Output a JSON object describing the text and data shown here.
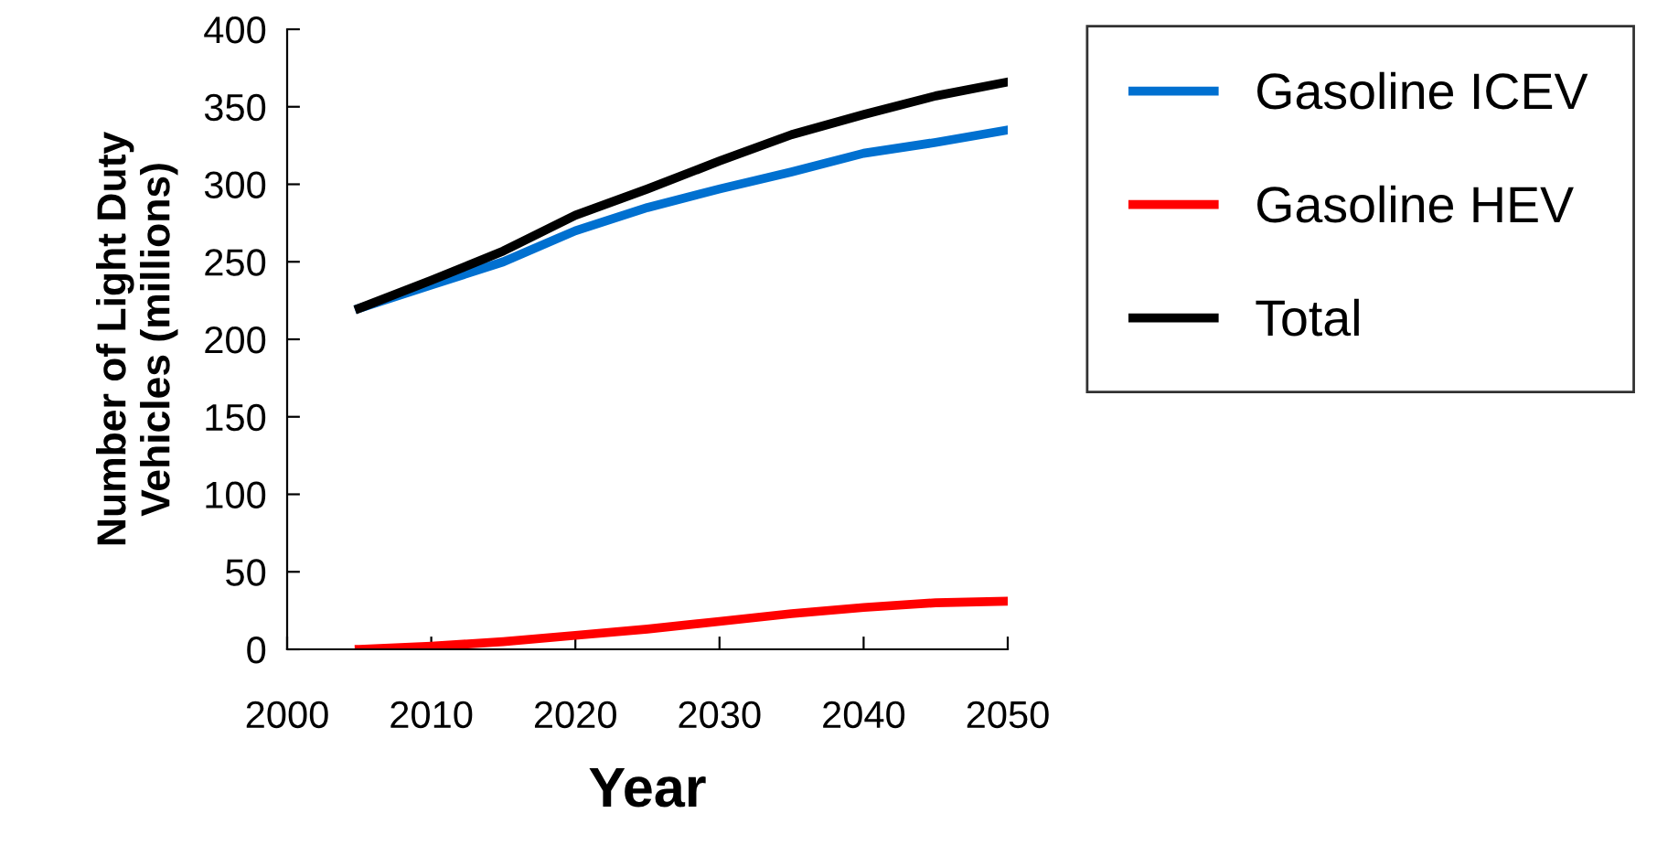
{
  "chart_data": {
    "type": "line",
    "xlabel": "Year",
    "ylabel": "Number of Light Duty\nVehicles (millions)",
    "x": [
      2005,
      2010,
      2015,
      2020,
      2025,
      2030,
      2035,
      2040,
      2045,
      2050
    ],
    "series": [
      {
        "name": "Gasoline ICEV",
        "color": "#0070d0",
        "values": [
          220,
          235,
          250,
          270,
          285,
          297,
          308,
          320,
          327,
          335
        ]
      },
      {
        "name": "Gasoline HEV",
        "color": "#ff0000",
        "values": [
          0,
          2,
          5,
          9,
          13,
          18,
          23,
          27,
          30,
          31
        ]
      },
      {
        "name": "Total",
        "color": "#000000",
        "values": [
          220,
          238,
          257,
          280,
          297,
          315,
          332,
          345,
          357,
          366
        ]
      }
    ],
    "xlim": [
      2000,
      2050
    ],
    "xticks": [
      2000,
      2010,
      2020,
      2030,
      2040,
      2050
    ],
    "ylim": [
      0,
      400
    ],
    "yticks": [
      0,
      50,
      100,
      150,
      200,
      250,
      300,
      350,
      400
    ],
    "grid": false,
    "legend": "right",
    "marker": "none",
    "line_style": "solid"
  }
}
